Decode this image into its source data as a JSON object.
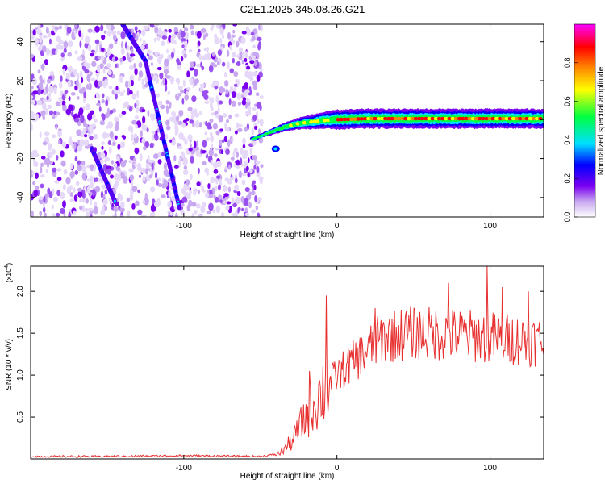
{
  "title": "C2E1.2025.345.08.26.G21",
  "chart_data": [
    {
      "type": "heatmap",
      "xlabel": "Height of straight line (km)",
      "ylabel": "Frequency (Hz)",
      "xlim": [
        -200,
        135
      ],
      "ylim": [
        -50,
        49
      ],
      "x_ticks": [
        -100,
        0,
        100
      ],
      "y_ticks": [
        -40,
        -20,
        0,
        20,
        40
      ],
      "grid": false,
      "colorbar": {
        "label": "Normalized spectral amplitude",
        "range": [
          0,
          1
        ],
        "ticks": [
          "0.0",
          "0.2",
          "0.4",
          "0.6",
          "0.8"
        ],
        "colors": [
          "#ffffff",
          "#c8a8f0",
          "#7b00f0",
          "#0000ff",
          "#00e0ff",
          "#00ff40",
          "#ffff00",
          "#ff8000",
          "#ff0000",
          "#ff00ff"
        ]
      },
      "features": {
        "noise_region_x": [
          -200,
          -55
        ],
        "streaks": [
          {
            "x": [
              -140,
              -125
            ],
            "y": [
              49,
              30
            ]
          },
          {
            "x": [
              -125,
              -103
            ],
            "y": [
              30,
              -45
            ]
          },
          {
            "x": [
              -160,
              -145
            ],
            "y": [
              -15,
              -42
            ]
          }
        ],
        "main_trace": {
          "x": [
            -55,
            -45,
            -35,
            -25,
            -10,
            0,
            20,
            50,
            80,
            110,
            135
          ],
          "y": [
            -10,
            -7,
            -4,
            -2,
            -0.5,
            0,
            0.5,
            0.5,
            0.5,
            0.5,
            0.5
          ]
        }
      }
    },
    {
      "type": "line",
      "xlabel": "Height of straight line (km)",
      "ylabel": "SNR (10 * v/v)",
      "y_multiplier": "(x10",
      "y_multiplier_exp": "4",
      "xlim": [
        -200,
        135
      ],
      "ylim": [
        0,
        2.3
      ],
      "x_ticks": [
        -100,
        0,
        100
      ],
      "y_ticks": [
        "0.5",
        "1.0",
        "1.5",
        "2.0"
      ],
      "grid": false,
      "series": [
        {
          "color": "#e83030",
          "trend_x": [
            -200,
            -150,
            -100,
            -50,
            -38,
            -30,
            -22,
            -15,
            -10,
            -5,
            0,
            10,
            20,
            30,
            45,
            60,
            80,
            100,
            120,
            135
          ],
          "trend_y": [
            0.03,
            0.03,
            0.04,
            0.03,
            0.06,
            0.2,
            0.45,
            0.65,
            0.8,
            0.9,
            1.0,
            1.15,
            1.3,
            1.45,
            1.5,
            1.5,
            1.48,
            1.45,
            1.42,
            1.4
          ],
          "spikes": [
            [
              -7,
              1.95
            ],
            [
              98,
              2.3
            ],
            [
              73,
              2.1
            ],
            [
              108,
              2.05
            ],
            [
              125,
              2.0
            ],
            [
              25,
              1.8
            ],
            [
              -18,
              1.05
            ]
          ]
        }
      ]
    }
  ]
}
